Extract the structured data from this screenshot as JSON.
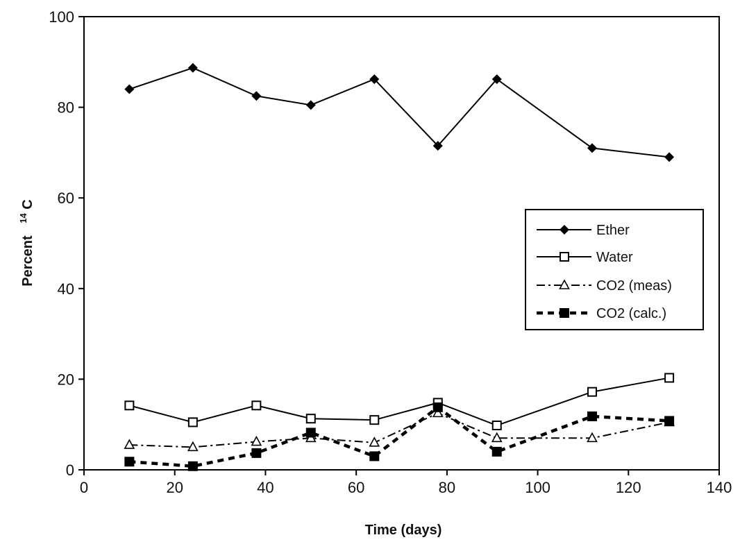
{
  "chart_data": {
    "type": "line",
    "xlabel": "Time (days)",
    "ylabel_main": "Percent",
    "ylabel_sup": "14",
    "ylabel_tail": "C",
    "xlim": [
      0,
      140
    ],
    "ylim": [
      0,
      100
    ],
    "x_ticks": [
      "0",
      "20",
      "40",
      "60",
      "80",
      "100",
      "120",
      "140"
    ],
    "y_ticks": [
      "0",
      "20",
      "40",
      "60",
      "80",
      "100"
    ],
    "grid": false,
    "legend_position": "right",
    "x": [
      10,
      24,
      38,
      50,
      64,
      78,
      91,
      112,
      129
    ],
    "series": [
      {
        "name": "Ether",
        "marker": "diamond-filled",
        "line": "solid",
        "color": "#000000",
        "values": [
          84,
          88.7,
          82.5,
          80.5,
          86.2,
          71.5,
          86.2,
          71,
          69
        ]
      },
      {
        "name": "Water",
        "marker": "square-open",
        "line": "solid",
        "color": "#000000",
        "values": [
          14.2,
          10.5,
          14.2,
          11.3,
          11,
          14.8,
          9.8,
          17.2,
          20.3
        ]
      },
      {
        "name": "CO2 (meas)",
        "marker": "triangle-open",
        "line": "dash-dot",
        "color": "#000000",
        "values": [
          5.5,
          5,
          6.2,
          7,
          6,
          12.5,
          7,
          7,
          10.5
        ]
      },
      {
        "name": "CO2 (calc.)",
        "marker": "square-filled",
        "line": "bold-dash",
        "color": "#000000",
        "values": [
          1.8,
          0.8,
          3.7,
          8.2,
          3,
          13.8,
          4,
          11.8,
          10.8
        ]
      }
    ]
  }
}
